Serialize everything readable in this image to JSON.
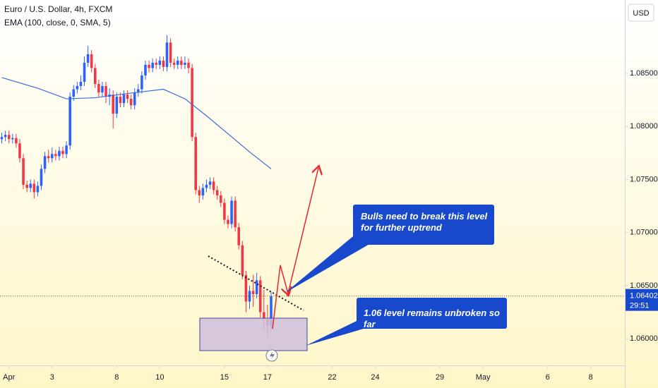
{
  "chart_data": {
    "type": "candlestick",
    "title": "Euro / U.S. Dollar, 4h, FXCM",
    "subtitle": "EMA (100, close, 0, SMA, 5)",
    "currency": "USD",
    "up_color": "#2962ff",
    "down_color": "#f23645",
    "x": [
      4,
      5,
      6,
      7,
      8,
      9,
      10,
      11,
      12,
      13,
      14,
      15,
      16,
      17,
      18,
      19,
      20,
      21,
      22,
      23,
      24,
      25,
      26,
      27,
      28,
      29,
      30,
      31,
      32,
      33,
      34,
      35,
      36,
      37,
      38,
      39,
      40,
      41,
      42,
      43,
      44,
      45,
      46,
      47,
      48,
      49,
      50,
      51,
      52,
      53,
      54,
      55,
      56,
      57,
      58,
      59,
      60,
      61,
      62,
      63,
      64,
      65,
      66,
      67,
      68,
      69,
      70,
      71,
      72,
      73,
      74,
      75,
      76,
      77,
      78,
      79
    ],
    "ohlc": [
      [
        1.0788,
        1.0794,
        1.0784,
        1.079
      ],
      [
        1.079,
        1.0796,
        1.0786,
        1.0792
      ],
      [
        1.0792,
        1.0796,
        1.0784,
        1.0788
      ],
      [
        1.0788,
        1.0793,
        1.0784,
        1.0789
      ],
      [
        1.0789,
        1.0793,
        1.078,
        1.0784
      ],
      [
        1.0784,
        1.0788,
        1.0766,
        1.077
      ],
      [
        1.077,
        1.0774,
        1.0741,
        1.0745
      ],
      [
        1.0745,
        1.0749,
        1.0738,
        1.0742
      ],
      [
        1.0742,
        1.075,
        1.0738,
        1.0746
      ],
      [
        1.0746,
        1.075,
        1.0732,
        1.0738
      ],
      [
        1.0738,
        1.0748,
        1.0734,
        1.0744
      ],
      [
        1.0744,
        1.0764,
        1.074,
        1.076
      ],
      [
        1.076,
        1.0776,
        1.0756,
        1.0772
      ],
      [
        1.0772,
        1.0778,
        1.0766,
        1.077
      ],
      [
        1.077,
        1.078,
        1.0766,
        1.0774
      ],
      [
        1.0774,
        1.0778,
        1.0768,
        1.0772
      ],
      [
        1.0772,
        1.0781,
        1.0768,
        1.0777
      ],
      [
        1.0777,
        1.0781,
        1.077,
        1.0774
      ],
      [
        1.0774,
        1.0786,
        1.077,
        1.0782
      ],
      [
        1.0782,
        1.0832,
        1.0778,
        1.0828
      ],
      [
        1.0828,
        1.0839,
        1.0824,
        1.0835
      ],
      [
        1.0835,
        1.0842,
        1.0831,
        1.0838
      ],
      [
        1.0838,
        1.0848,
        1.0834,
        1.0842
      ],
      [
        1.0842,
        1.0866,
        1.0838,
        1.086
      ],
      [
        1.086,
        1.0876,
        1.0856,
        1.0868
      ],
      [
        1.0868,
        1.0872,
        1.0851,
        1.0855
      ],
      [
        1.0855,
        1.0859,
        1.0836,
        1.084
      ],
      [
        1.084,
        1.0844,
        1.0828,
        1.0832
      ],
      [
        1.0832,
        1.0842,
        1.0828,
        1.0838
      ],
      [
        1.0838,
        1.0842,
        1.0822,
        1.0828
      ],
      [
        1.0828,
        1.0836,
        1.082,
        1.083
      ],
      [
        1.083,
        1.0834,
        1.0798,
        1.0812
      ],
      [
        1.0812,
        1.0832,
        1.0808,
        1.0828
      ],
      [
        1.0828,
        1.0832,
        1.0818,
        1.0822
      ],
      [
        1.0822,
        1.0834,
        1.0818,
        1.083
      ],
      [
        1.083,
        1.0834,
        1.0822,
        1.0826
      ],
      [
        1.0826,
        1.083,
        1.0816,
        1.082
      ],
      [
        1.082,
        1.0836,
        1.0816,
        1.0832
      ],
      [
        1.0832,
        1.084,
        1.0828,
        1.0835
      ],
      [
        1.0835,
        1.0852,
        1.0831,
        1.0848
      ],
      [
        1.0848,
        1.0862,
        1.0844,
        1.0858
      ],
      [
        1.0858,
        1.0862,
        1.0851,
        1.0855
      ],
      [
        1.0855,
        1.0864,
        1.0851,
        1.086
      ],
      [
        1.086,
        1.0864,
        1.0854,
        1.0858
      ],
      [
        1.0858,
        1.0866,
        1.0854,
        1.0862
      ],
      [
        1.0862,
        1.0866,
        1.0852,
        1.0856
      ],
      [
        1.0856,
        1.0886,
        1.0852,
        1.0879
      ],
      [
        1.0879,
        1.0883,
        1.0856,
        1.086
      ],
      [
        1.086,
        1.0864,
        1.0854,
        1.0858
      ],
      [
        1.0858,
        1.0866,
        1.0854,
        1.0862
      ],
      [
        1.0862,
        1.0866,
        1.0854,
        1.0858
      ],
      [
        1.0858,
        1.0866,
        1.0854,
        1.086
      ],
      [
        1.086,
        1.0864,
        1.085,
        1.0855
      ],
      [
        1.0855,
        1.0859,
        1.0786,
        1.079
      ],
      [
        1.079,
        1.0794,
        1.0736,
        1.074
      ],
      [
        1.074,
        1.0744,
        1.0728,
        1.0735
      ],
      [
        1.0735,
        1.0746,
        1.0731,
        1.0742
      ],
      [
        1.0742,
        1.075,
        1.0738,
        1.0745
      ],
      [
        1.0745,
        1.0752,
        1.0741,
        1.0748
      ],
      [
        1.0748,
        1.0752,
        1.0736,
        1.074
      ],
      [
        1.074,
        1.0744,
        1.0731,
        1.0735
      ],
      [
        1.0735,
        1.0739,
        1.0724,
        1.0728
      ],
      [
        1.0728,
        1.0732,
        1.0708,
        1.0712
      ],
      [
        1.0712,
        1.0716,
        1.0704,
        1.0708
      ],
      [
        1.0708,
        1.0734,
        1.0704,
        1.073
      ],
      [
        1.073,
        1.0734,
        1.0701,
        1.0705
      ],
      [
        1.0705,
        1.0709,
        1.0684,
        1.0688
      ],
      [
        1.0688,
        1.0692,
        1.0656,
        1.066
      ],
      [
        1.066,
        1.0664,
        1.0625,
        1.0635
      ],
      [
        1.0635,
        1.065,
        1.0628,
        1.0645
      ],
      [
        1.0645,
        1.066,
        1.063,
        1.0642
      ],
      [
        1.0642,
        1.0662,
        1.0638,
        1.0655
      ],
      [
        1.0655,
        1.0659,
        1.062,
        1.0625
      ],
      [
        1.0625,
        1.0646,
        1.0608,
        1.0618
      ],
      [
        1.0618,
        1.0632,
        1.0602,
        1.0612
      ],
      [
        1.0612,
        1.0644,
        1.0608,
        1.064
      ]
    ],
    "ema": {
      "color": "#3d6ad6",
      "x": [
        4,
        14,
        22,
        30,
        39,
        49,
        55,
        61,
        67,
        73,
        79
      ],
      "values": [
        1.0846,
        1.0836,
        1.0826,
        1.0827,
        1.0831,
        1.0835,
        1.0826,
        1.081,
        1.0793,
        1.0776,
        1.076
      ]
    },
    "last_price": 1.06402,
    "countdown": "29:51",
    "xlim": [
      3.5,
      177.5
    ],
    "ylim": [
      1.05748,
      1.09191
    ],
    "xticks": [
      {
        "value": 6,
        "label": "Apr"
      },
      {
        "value": 18,
        "label": "3"
      },
      {
        "value": 36,
        "label": "8"
      },
      {
        "value": 48,
        "label": "10"
      },
      {
        "value": 66,
        "label": "15"
      },
      {
        "value": 78,
        "label": "17"
      },
      {
        "value": 96,
        "label": "22"
      },
      {
        "value": 108,
        "label": "24"
      },
      {
        "value": 126,
        "label": "29"
      },
      {
        "value": 138,
        "label": "May"
      },
      {
        "value": 156,
        "label": "6"
      },
      {
        "value": 168,
        "label": "8"
      }
    ],
    "yticks": [
      {
        "value": 1.06,
        "label": "1.06000"
      },
      {
        "value": 1.065,
        "label": "1.06500"
      },
      {
        "value": 1.07,
        "label": "1.07000"
      },
      {
        "value": 1.075,
        "label": "1.07500"
      },
      {
        "value": 1.08,
        "label": "1.08000"
      },
      {
        "value": 1.085,
        "label": "1.08500"
      }
    ],
    "annotations": [
      "Bulls need to break this level for further uptrend",
      "1.06 level remains unbroken so far"
    ]
  }
}
